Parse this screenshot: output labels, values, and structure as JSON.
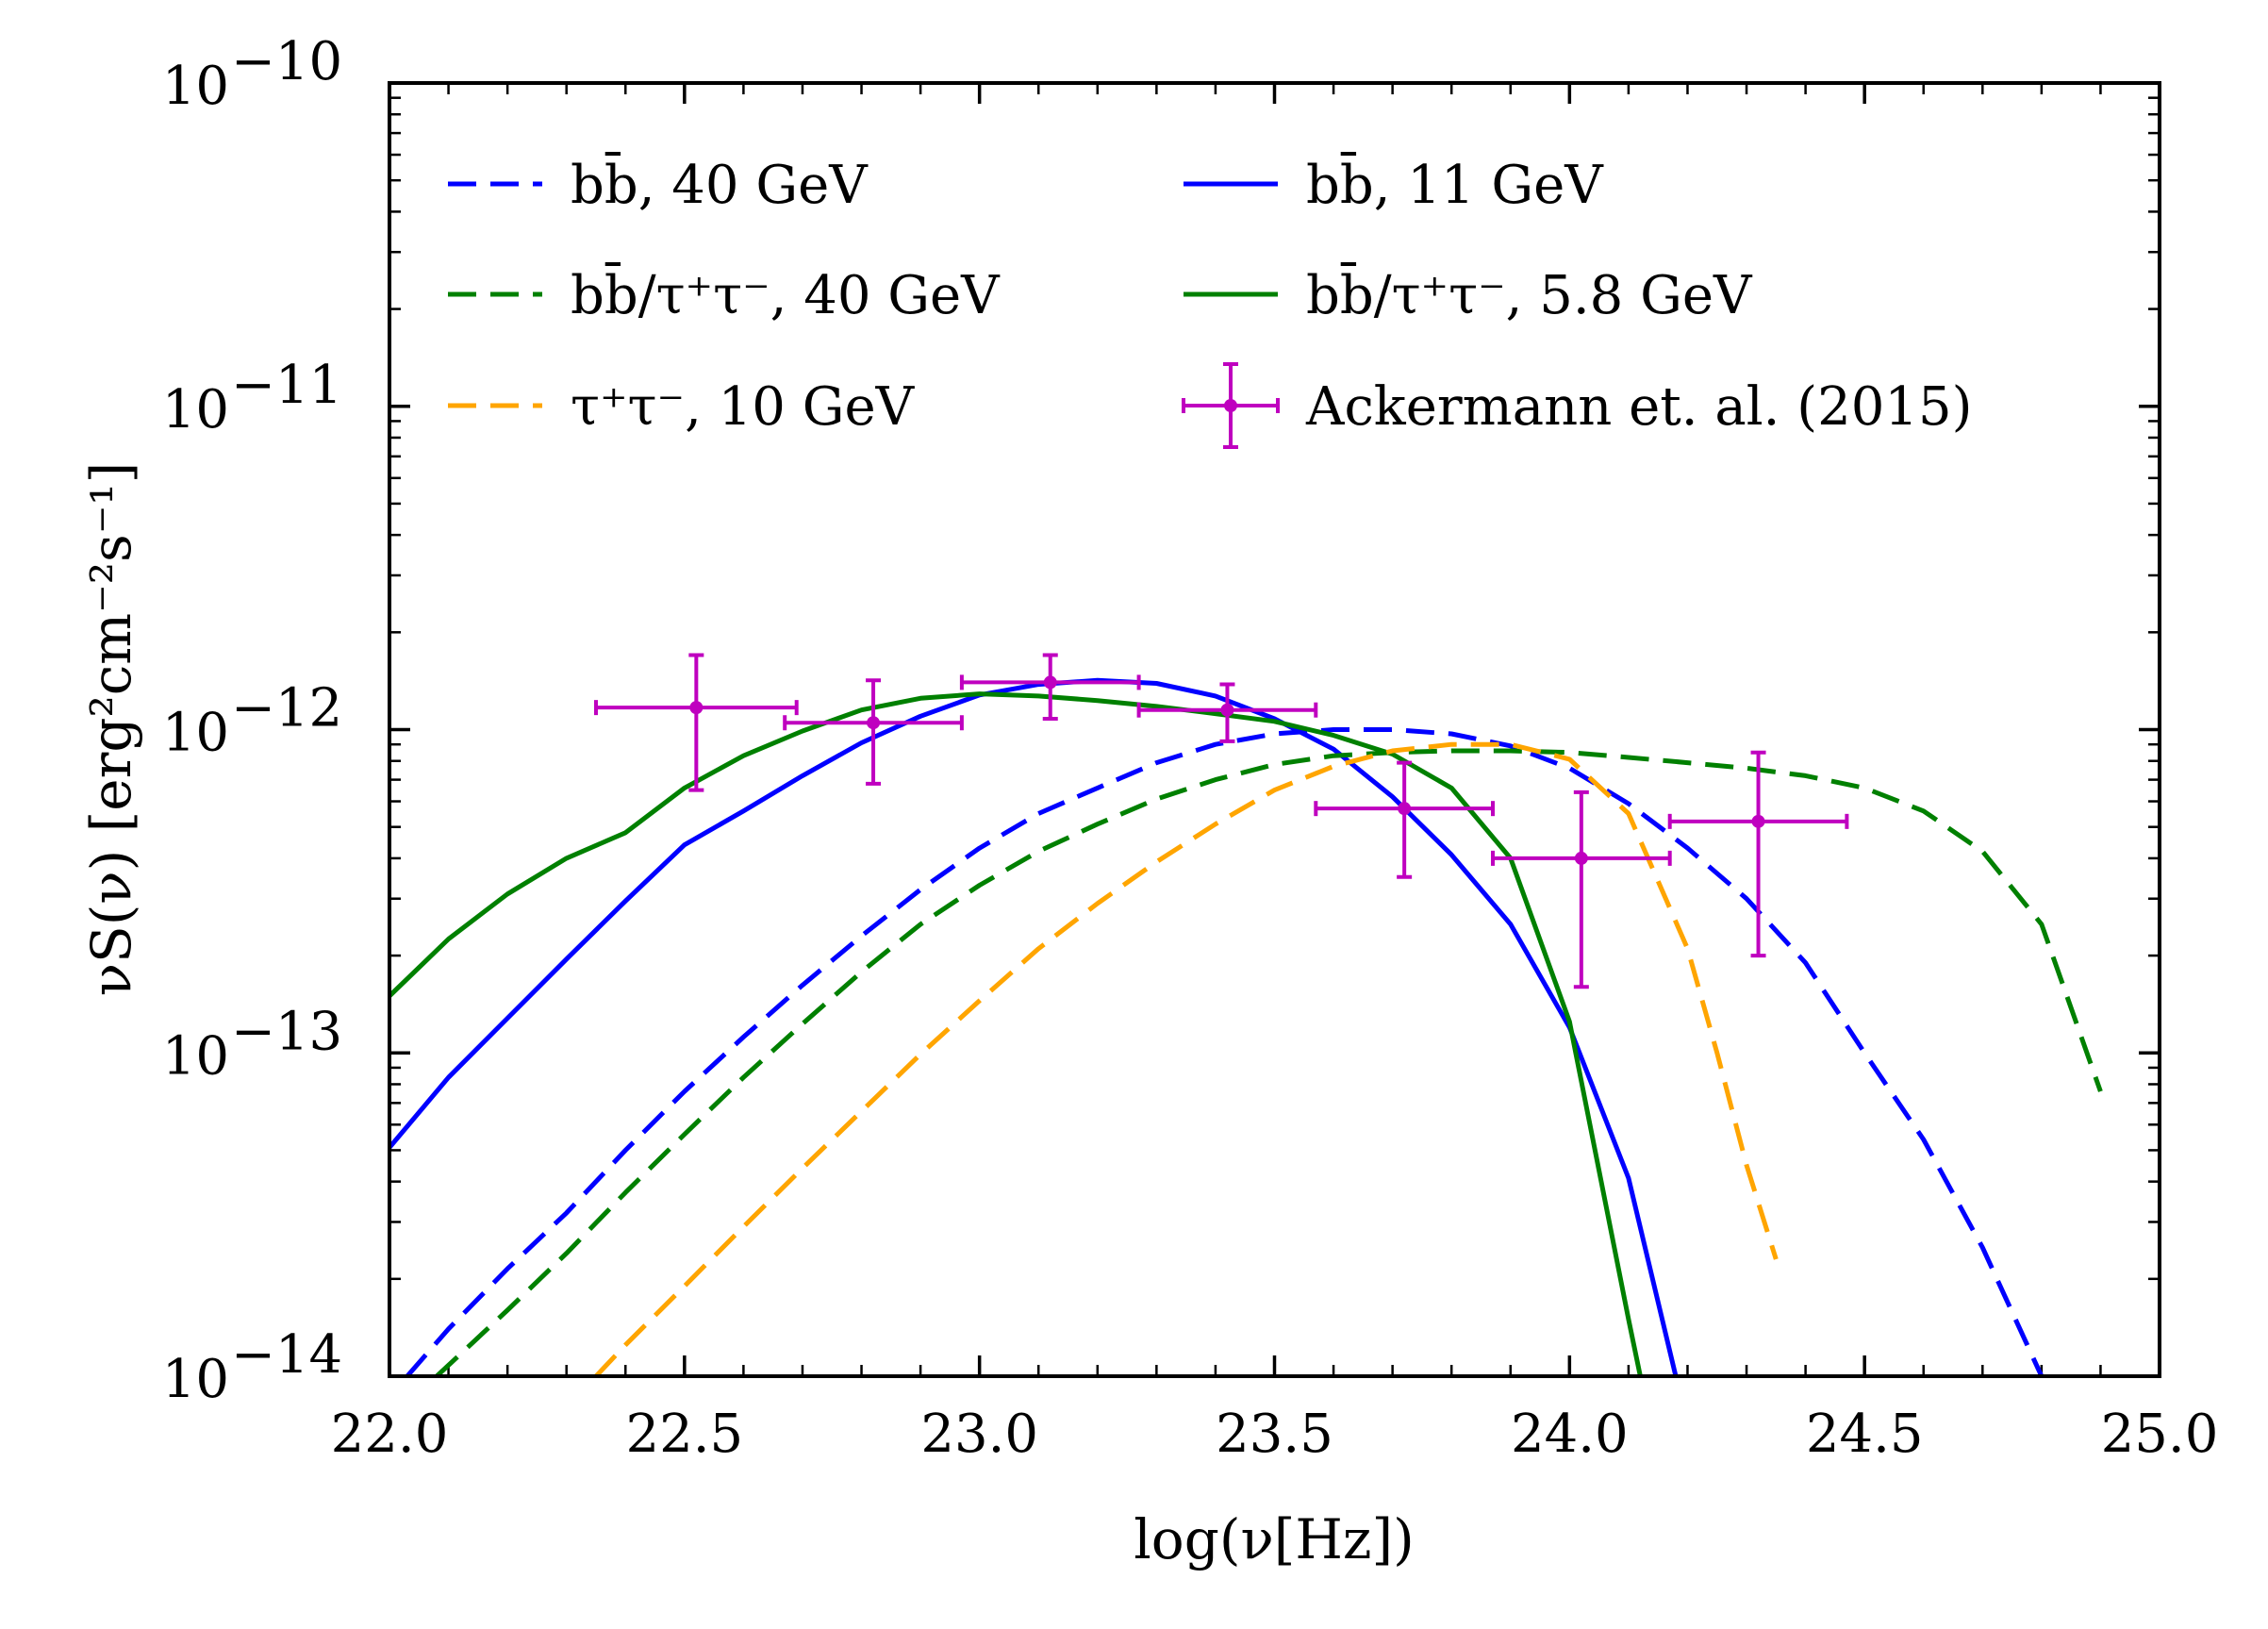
{
  "chart_data": {
    "type": "line",
    "title": "",
    "xlabel": "log(ν[Hz])",
    "ylabel": "νS(ν) [erg²cm⁻²s⁻¹]",
    "xlim": [
      22.0,
      25.0
    ],
    "ylim": [
      1e-14,
      1e-10
    ],
    "yscale": "log",
    "grid": false,
    "legend_position": "upper",
    "x_ticks": [
      {
        "value": 22.0,
        "label": "22.0"
      },
      {
        "value": 22.5,
        "label": "22.5"
      },
      {
        "value": 23.0,
        "label": "23.0"
      },
      {
        "value": 23.5,
        "label": "23.5"
      },
      {
        "value": 24.0,
        "label": "24.0"
      },
      {
        "value": 24.5,
        "label": "24.5"
      },
      {
        "value": 25.0,
        "label": "25.0"
      }
    ],
    "y_ticks": [
      {
        "value": 1e-14,
        "base": "10",
        "exp": "−14"
      },
      {
        "value": 1e-13,
        "base": "10",
        "exp": "−13"
      },
      {
        "value": 1e-12,
        "base": "10",
        "exp": "−12"
      },
      {
        "value": 1e-11,
        "base": "10",
        "exp": "−11"
      },
      {
        "value": 1e-10,
        "base": "10",
        "exp": "−10"
      }
    ],
    "series": [
      {
        "name": "bb̄, 40 GeV",
        "color": "#0000ff",
        "dash": true,
        "x": [
          22.03,
          22.1,
          22.2,
          22.3,
          22.4,
          22.5,
          22.6,
          22.7,
          22.8,
          22.9,
          23.0,
          23.1,
          23.2,
          23.3,
          23.4,
          23.5,
          23.6,
          23.7,
          23.8,
          23.9,
          24.0,
          24.1,
          24.2,
          24.3,
          24.4,
          24.5,
          24.6,
          24.7,
          24.8
        ],
        "y": [
          1e-14,
          1.4e-14,
          2.15e-14,
          3.2e-14,
          5e-14,
          7.6e-14,
          1.12e-13,
          1.62e-13,
          2.3e-13,
          3.2e-13,
          4.3e-13,
          5.5e-13,
          6.6e-13,
          7.9e-13,
          9e-13,
          9.7e-13,
          1e-12,
          1e-12,
          9.7e-13,
          8.9e-13,
          7.6e-13,
          5.9e-13,
          4.3e-13,
          3e-13,
          1.9e-13,
          1e-13,
          5.4e-14,
          2.5e-14,
          1e-14
        ]
      },
      {
        "name": "bb̄, 11 GeV",
        "color": "#0000ff",
        "dash": false,
        "x": [
          22.0,
          22.1,
          22.2,
          22.3,
          22.4,
          22.5,
          22.6,
          22.7,
          22.8,
          22.9,
          23.0,
          23.1,
          23.2,
          23.3,
          23.4,
          23.5,
          23.6,
          23.7,
          23.8,
          23.9,
          24.0,
          24.1,
          24.18
        ],
        "y": [
          5.1e-14,
          8.4e-14,
          1.28e-13,
          1.95e-13,
          2.95e-13,
          4.4e-13,
          5.6e-13,
          7.2e-13,
          9.1e-13,
          1.1e-12,
          1.28e-12,
          1.38e-12,
          1.42e-12,
          1.39e-12,
          1.27e-12,
          1.08e-12,
          8.7e-13,
          6.2e-13,
          4.1e-13,
          2.5e-13,
          1.2e-13,
          4.1e-14,
          1e-14
        ]
      },
      {
        "name": "bb̄/τ⁺τ⁻, 40 GeV",
        "color": "#008000",
        "dash": true,
        "x": [
          22.08,
          22.2,
          22.3,
          22.4,
          22.5,
          22.6,
          22.7,
          22.8,
          22.9,
          23.0,
          23.1,
          23.2,
          23.3,
          23.4,
          23.5,
          23.6,
          23.7,
          23.8,
          23.9,
          24.0,
          24.1,
          24.2,
          24.3,
          24.4,
          24.5,
          24.6,
          24.7,
          24.8,
          24.9
        ],
        "y": [
          1e-14,
          1.6e-14,
          2.4e-14,
          3.7e-14,
          5.6e-14,
          8.4e-14,
          1.23e-13,
          1.78e-13,
          2.5e-13,
          3.3e-13,
          4.2e-13,
          5.1e-13,
          6.1e-13,
          7e-13,
          7.8e-13,
          8.3e-13,
          8.5e-13,
          8.6e-13,
          8.6e-13,
          8.5e-13,
          8.2e-13,
          7.9e-13,
          7.6e-13,
          7.2e-13,
          6.6e-13,
          5.6e-13,
          4.2e-13,
          2.5e-13,
          7.6e-14
        ]
      },
      {
        "name": "bb̄/τ⁺τ⁻, 5.8 GeV",
        "color": "#008000",
        "dash": false,
        "x": [
          22.0,
          22.1,
          22.2,
          22.3,
          22.4,
          22.5,
          22.6,
          22.7,
          22.8,
          22.9,
          23.0,
          23.1,
          23.2,
          23.3,
          23.4,
          23.5,
          23.6,
          23.7,
          23.8,
          23.9,
          24.0,
          24.1,
          24.12
        ],
        "y": [
          1.5e-13,
          2.25e-13,
          3.1e-13,
          4e-13,
          4.8e-13,
          6.6e-13,
          8.3e-13,
          9.9e-13,
          1.15e-12,
          1.25e-12,
          1.29e-12,
          1.27e-12,
          1.23e-12,
          1.18e-12,
          1.12e-12,
          1.06e-12,
          9.6e-13,
          8.4e-13,
          6.6e-13,
          4e-13,
          1.25e-13,
          1.5e-14,
          1e-14
        ]
      },
      {
        "name": "τ⁺τ⁻, 10 GeV",
        "color": "#ffa500",
        "dash": true,
        "x": [
          22.35,
          22.4,
          22.5,
          22.6,
          22.7,
          22.8,
          22.9,
          23.0,
          23.1,
          23.2,
          23.3,
          23.4,
          23.5,
          23.6,
          23.7,
          23.8,
          23.9,
          24.0,
          24.1,
          24.2,
          24.25,
          24.3,
          24.35
        ],
        "y": [
          1e-14,
          1.25e-14,
          1.9e-14,
          2.9e-14,
          4.4e-14,
          6.6e-14,
          9.9e-14,
          1.45e-13,
          2.1e-13,
          2.9e-13,
          3.9e-13,
          5.1e-13,
          6.5e-13,
          7.7e-13,
          8.6e-13,
          9e-13,
          9e-13,
          8.1e-13,
          5.5e-13,
          2.1e-13,
          1e-13,
          4.5e-14,
          2.3e-14
        ]
      }
    ],
    "data_points": {
      "name": "Ackermann et. al. (2015)",
      "color": "#bf00bf",
      "points": [
        {
          "x": 22.52,
          "xerr": 0.17,
          "y": 1.17e-12,
          "ylo": 6.5e-13,
          "yhi": 1.7e-12
        },
        {
          "x": 22.82,
          "xerr": 0.15,
          "y": 1.05e-12,
          "ylo": 6.8e-13,
          "yhi": 1.42e-12
        },
        {
          "x": 23.12,
          "xerr": 0.15,
          "y": 1.4e-12,
          "ylo": 1.08e-12,
          "yhi": 1.7e-12
        },
        {
          "x": 23.42,
          "xerr": 0.15,
          "y": 1.15e-12,
          "ylo": 9.2e-13,
          "yhi": 1.38e-12
        },
        {
          "x": 23.72,
          "xerr": 0.15,
          "y": 5.7e-13,
          "ylo": 3.5e-13,
          "yhi": 7.9e-13
        },
        {
          "x": 24.02,
          "xerr": 0.15,
          "y": 4e-13,
          "ylo": 1.6e-13,
          "yhi": 6.4e-13
        },
        {
          "x": 24.32,
          "xerr": 0.15,
          "y": 5.2e-13,
          "ylo": 2e-13,
          "yhi": 8.5e-13
        }
      ]
    },
    "legend": [
      {
        "label": "bb̄, 40 GeV",
        "series": 0,
        "type": "line"
      },
      {
        "label": "bb̄, 11 GeV",
        "series": 1,
        "type": "line"
      },
      {
        "label": "bb̄/τ⁺τ⁻, 40 GeV",
        "series": 2,
        "type": "line"
      },
      {
        "label": "bb̄/τ⁺τ⁻, 5.8 GeV",
        "series": 3,
        "type": "line"
      },
      {
        "label": "τ⁺τ⁻, 10 GeV",
        "series": 4,
        "type": "line"
      },
      {
        "label": "Ackermann et. al. (2015)",
        "type": "errorbar"
      }
    ]
  }
}
